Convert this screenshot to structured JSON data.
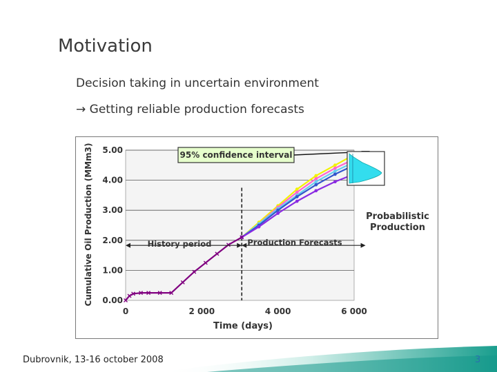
{
  "slide": {
    "title": "Motivation",
    "bullet1": "Decision taking in uncertain environment",
    "bullet2_arrow": "→",
    "bullet2": "Getting reliable production forecasts",
    "footer": "Dubrovnik, 13-16 october 2008",
    "page_number": "3"
  },
  "chart_data": {
    "type": "line",
    "title": "",
    "xlabel": "Time (days)",
    "ylabel": "Cumulative Oil Production (MMm3)",
    "xlim": [
      0,
      6000
    ],
    "ylim": [
      0,
      5
    ],
    "x_ticks": [
      0,
      2000,
      4000,
      6000
    ],
    "x_tick_labels": [
      "0",
      "2 000",
      "4 000",
      "6 000"
    ],
    "y_ticks": [
      0,
      1,
      2,
      3,
      4,
      5
    ],
    "y_tick_labels": [
      "0.00",
      "1.00",
      "2.00",
      "3.00",
      "4.00",
      "5.00"
    ],
    "grid": "horizontal",
    "history_end": 3050,
    "forecast_end": 6300,
    "history": {
      "x": [
        0,
        100,
        200,
        400,
        600,
        900,
        1200,
        1500,
        1800,
        2100,
        2400,
        2700,
        3050
      ],
      "y": [
        0.0,
        0.15,
        0.22,
        0.25,
        0.25,
        0.25,
        0.25,
        0.6,
        0.95,
        1.25,
        1.55,
        1.85,
        2.1
      ]
    },
    "series": [
      {
        "color": "#f2f200",
        "x": [
          3050,
          3500,
          4000,
          4500,
          5000,
          5500,
          6000
        ],
        "y": [
          2.1,
          2.6,
          3.15,
          3.7,
          4.15,
          4.5,
          4.85
        ]
      },
      {
        "color": "#ff66cc",
        "x": [
          3050,
          3500,
          4000,
          4500,
          5000,
          5500,
          6000
        ],
        "y": [
          2.1,
          2.55,
          3.1,
          3.6,
          4.05,
          4.4,
          4.7
        ]
      },
      {
        "color": "#66ccee",
        "x": [
          3050,
          3500,
          4000,
          4500,
          5000,
          5500,
          6000
        ],
        "y": [
          2.1,
          2.55,
          3.05,
          3.5,
          3.95,
          4.3,
          4.6
        ]
      },
      {
        "color": "#3355cc",
        "x": [
          3050,
          3500,
          4000,
          4500,
          5000,
          5500,
          6000
        ],
        "y": [
          2.1,
          2.5,
          3.0,
          3.45,
          3.85,
          4.2,
          4.5
        ]
      },
      {
        "color": "#8a2be2",
        "x": [
          3050,
          3500,
          4000,
          4500,
          5000,
          5500,
          6000
        ],
        "y": [
          2.1,
          2.45,
          2.9,
          3.3,
          3.65,
          3.95,
          4.2
        ]
      }
    ],
    "annotations": {
      "confidence_interval": "95% confidence interval",
      "history_period": "History period",
      "production_forecasts": "Production Forecasts",
      "probabilistic_line1": "Probabilistic",
      "probabilistic_line2": "Production"
    },
    "colors": {
      "history": "#800080",
      "distribution_fill": "#33ddee",
      "annotation_box": "#e6ffcc"
    }
  }
}
